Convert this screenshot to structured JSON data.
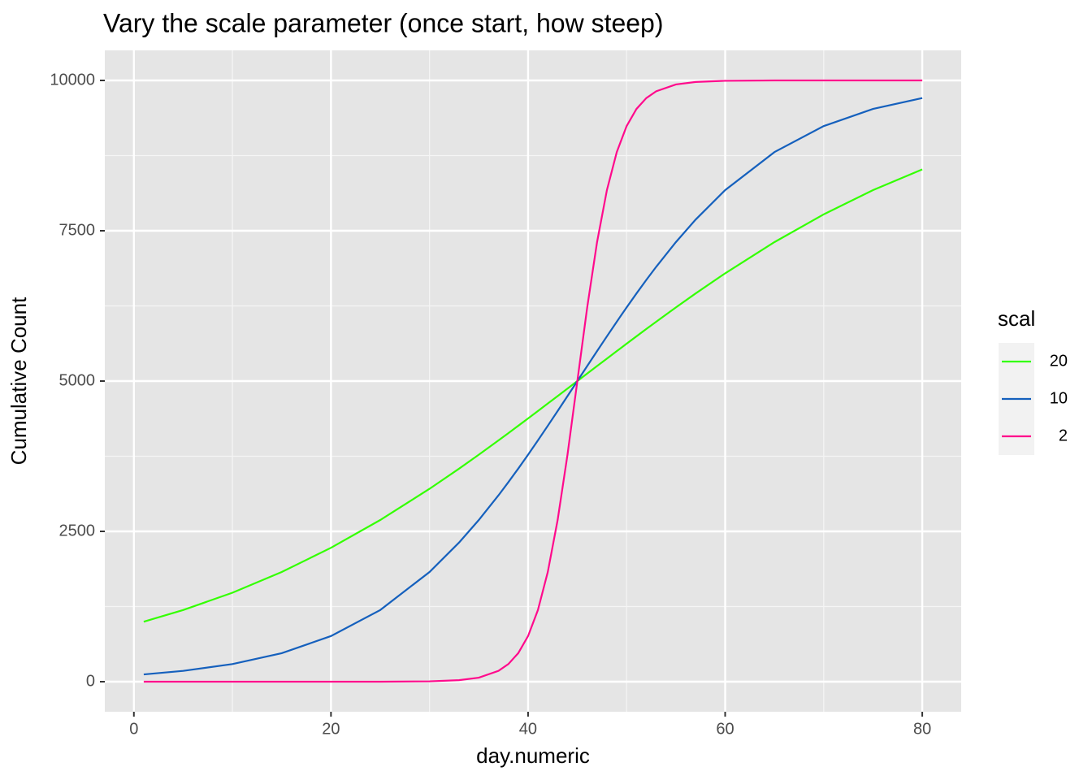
{
  "chart_data": {
    "type": "line",
    "title": "Vary the scale parameter (once start, how steep)",
    "x_label": "day.numeric",
    "y_label": "Cumulative Count",
    "legend_title": "scal",
    "x": [
      1,
      5,
      10,
      15,
      20,
      25,
      30,
      33,
      35,
      37,
      38,
      39,
      40,
      41,
      42,
      43,
      44,
      45,
      46,
      47,
      48,
      49,
      50,
      51,
      52,
      53,
      55,
      57,
      60,
      65,
      70,
      75,
      80
    ],
    "series": [
      {
        "name": "20",
        "color": "#33FF00",
        "values": [
          998,
          1192,
          1480,
          1824,
          2227,
          2689,
          3208,
          3543,
          3775,
          4013,
          4134,
          4256,
          4378,
          4502,
          4626,
          4750,
          4875,
          5000,
          5125,
          5250,
          5374,
          5498,
          5622,
          5744,
          5866,
          5987,
          6225,
          6457,
          6792,
          7311,
          7773,
          8176,
          8520
        ]
      },
      {
        "name": "10",
        "color": "#1560BD",
        "values": [
          121,
          180,
          293,
          474,
          759,
          1192,
          1824,
          2315,
          2689,
          3100,
          3318,
          3543,
          3775,
          4013,
          4256,
          4502,
          4750,
          5000,
          5250,
          5498,
          5744,
          5987,
          6225,
          6457,
          6682,
          6900,
          7311,
          7685,
          8176,
          8808,
          9241,
          9526,
          9707
        ]
      },
      {
        "name": "2",
        "color": "#FF0A8C",
        "values": [
          0,
          0,
          0,
          0,
          0,
          0,
          6,
          25,
          67,
          180,
          293,
          474,
          759,
          1192,
          1824,
          2689,
          3775,
          5000,
          6225,
          7311,
          8176,
          8808,
          9241,
          9526,
          9707,
          9820,
          9933,
          9975,
          9994,
          10000,
          10000,
          10000,
          10000
        ]
      }
    ],
    "xlim": [
      -2.95,
      83.95
    ],
    "xticks": [
      0,
      20,
      40,
      60,
      80
    ],
    "ylim": [
      -500,
      10500
    ],
    "yticks": [
      0,
      2500,
      5000,
      7500,
      10000
    ],
    "grid": true,
    "legend": "right"
  }
}
